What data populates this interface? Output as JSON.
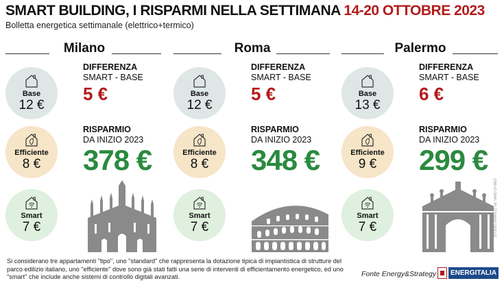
{
  "header": {
    "title_main": "SMART BUILDING, I RISPARMI NELLA SETTIMANA",
    "title_dates": "14-20 OTTOBRE 2023",
    "subtitle": "Bolletta energetica settimanale (elettrico+termico)"
  },
  "labels": {
    "diff_title": "DIFFERENZA",
    "diff_sub": "SMART - BASE",
    "sav_title": "RISPARMIO",
    "sav_sub": "DA INIZIO 2023",
    "base": "Base",
    "efficiente": "Efficiente",
    "smart": "Smart"
  },
  "cities": [
    {
      "name": "Milano",
      "base": "12 €",
      "efficiente": "8 €",
      "smart": "7 €",
      "difference": "5 €",
      "saving": "378 €",
      "monument_icon": "duomo-icon"
    },
    {
      "name": "Roma",
      "base": "12 €",
      "efficiente": "8 €",
      "smart": "7 €",
      "difference": "5 €",
      "saving": "348 €",
      "monument_icon": "colosseum-icon"
    },
    {
      "name": "Palermo",
      "base": "13 €",
      "efficiente": "9 €",
      "smart": "7 €",
      "difference": "6 €",
      "saving": "299 €",
      "monument_icon": "porta-nuova-icon"
    }
  ],
  "footer": {
    "note": "Si considerano tre appartamenti \"tipo\", uno \"standard\" che rappresenta la dotazione tipica di impiantistica di strutture del parco edilizio italiano, uno \"efficiente\" dove sono già stati fatti una serie di interventi di efficientamento energetico, ed uno \"smart\" che include anche sistemi di controllo digitali avanzati.",
    "source": "Fonte Energy&Strategy",
    "logo_text": "ENERGITALIA",
    "credit": "STUDIO GRAFICO SIL VANO DI MEO"
  },
  "colors": {
    "accent_red": "#b31b1b",
    "saving_green": "#2a8a3e",
    "base_bg": "#dfe6e6",
    "efficiente_bg": "#f7e5c8",
    "smart_bg": "#dff0df"
  }
}
